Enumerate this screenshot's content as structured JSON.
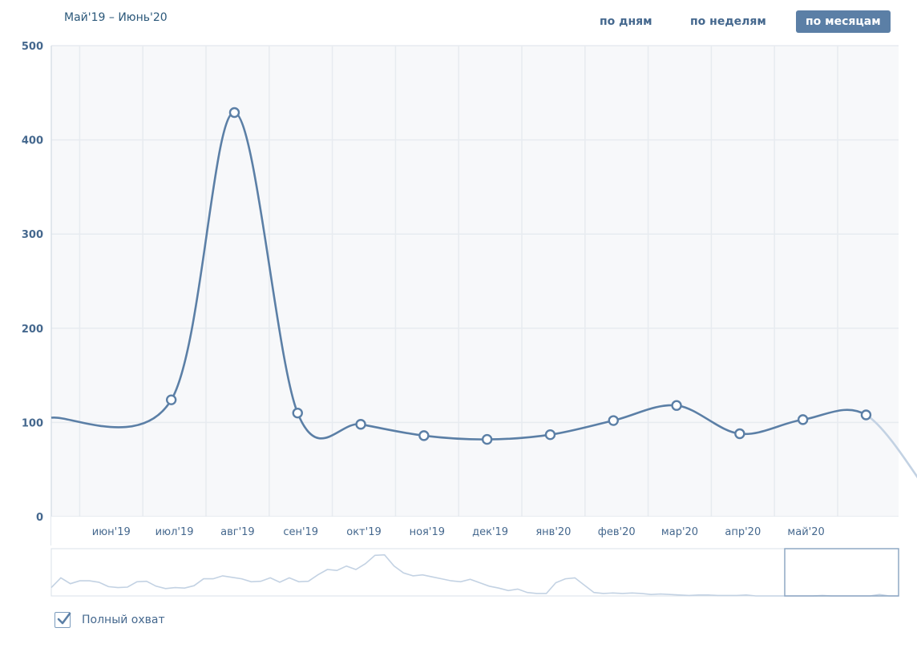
{
  "header": {
    "range_label": "Май'19 – Июнь'20",
    "modes": [
      "по дням",
      "по неделям",
      "по месяцам"
    ],
    "active_mode": "по месяцам"
  },
  "legend": {
    "label": "Полный охват",
    "checked": true
  },
  "colors": {
    "line": "#5b7fa6",
    "line_faded": "#c3d2e3",
    "grid": "#e7ebf0",
    "plot_bg": "#f7f8fa",
    "axis_text": "#45688e"
  },
  "chart_data": {
    "type": "line",
    "x": [
      "май'19",
      "июн'19",
      "июл'19",
      "авг'19",
      "сен'19",
      "окт'19",
      "ноя'19",
      "дек'19",
      "янв'20",
      "фев'20",
      "мар'20",
      "апр'20",
      "май'20",
      "июн'20"
    ],
    "x_tick_labels": [
      "июн'19",
      "июл'19",
      "авг'19",
      "сен'19",
      "окт'19",
      "ноя'19",
      "дек'19",
      "янв'20",
      "фев'20",
      "мар'20",
      "апр'20",
      "май'20"
    ],
    "series": [
      {
        "values": [
          105,
          124,
          429,
          110,
          98,
          86,
          82,
          87,
          102,
          118,
          88,
          103,
          108,
          24
        ]
      }
    ],
    "ylim": [
      0,
      500
    ],
    "yticks": [
      0,
      100,
      200,
      300,
      400,
      500
    ],
    "grid": true
  }
}
